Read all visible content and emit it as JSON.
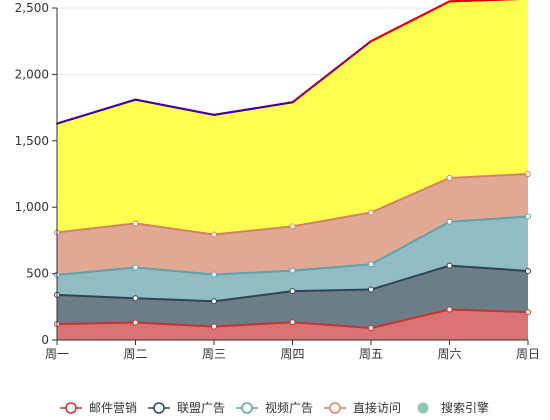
{
  "chart_data": {
    "type": "area",
    "stacked": true,
    "categories": [
      "周一",
      "周二",
      "周三",
      "周四",
      "周五",
      "周六",
      "周日"
    ],
    "ylim": [
      0,
      2500
    ],
    "yticks": [
      0,
      500,
      1000,
      1500,
      2000,
      2500
    ],
    "ytick_labels": [
      "0",
      "500",
      "1,000",
      "1,500",
      "2,000",
      "2,500"
    ],
    "grid": true,
    "legend_position": "bottom",
    "series": [
      {
        "name": "邮件营销",
        "values": [
          120,
          132,
          101,
          134,
          90,
          230,
          210
        ],
        "line_color": "#c23531",
        "fill_color": "#d97375"
      },
      {
        "name": "联盟广告",
        "values": [
          220,
          182,
          191,
          234,
          290,
          330,
          310
        ],
        "line_color": "#2f4554",
        "fill_color": "#6d7d88"
      },
      {
        "name": "视频广告",
        "values": [
          150,
          232,
          201,
          154,
          190,
          330,
          410
        ],
        "line_color": "#61a0a8",
        "fill_color": "#90bcc2"
      },
      {
        "name": "直接访问",
        "values": [
          320,
          332,
          301,
          334,
          390,
          330,
          320
        ],
        "line_color": "#d48265",
        "fill_color": "#e1a993"
      },
      {
        "name": "搜索引擎",
        "values": [
          820,
          932,
          901,
          934,
          1290,
          1330,
          1320
        ],
        "line_color": "#91c7ae",
        "fill_color": "#ffff4f"
      }
    ]
  }
}
